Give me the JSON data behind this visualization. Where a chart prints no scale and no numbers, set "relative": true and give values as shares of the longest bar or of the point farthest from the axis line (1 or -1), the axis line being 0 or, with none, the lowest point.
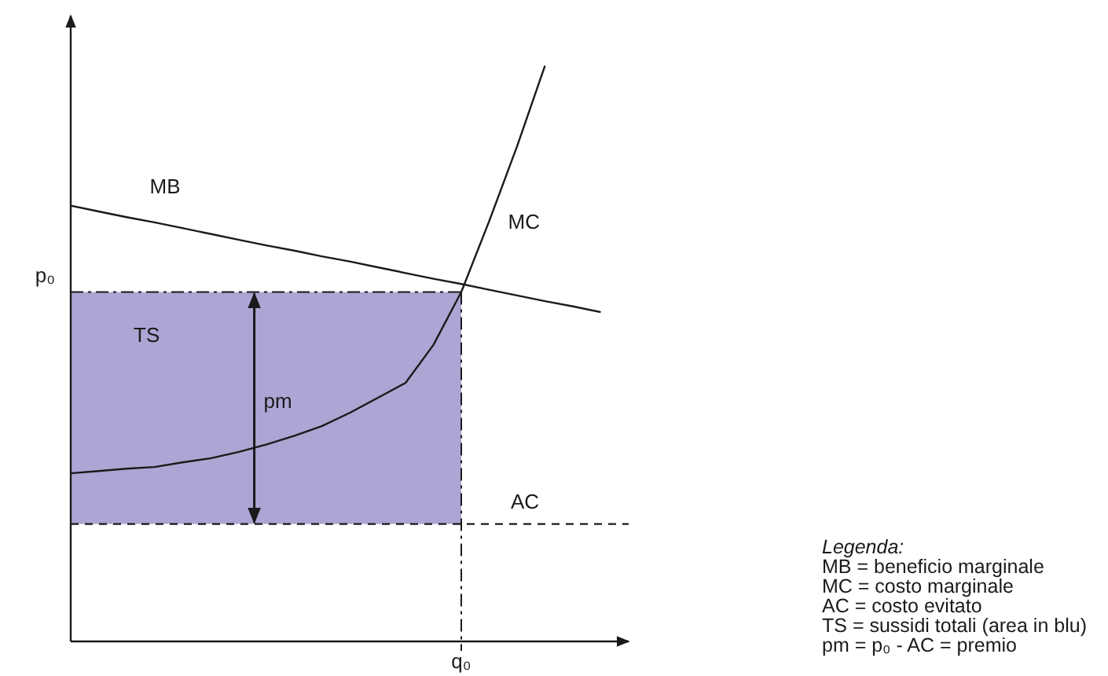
{
  "chart_data": {
    "type": "line",
    "relative": true,
    "categories": [
      null,
      null,
      null,
      null,
      null,
      null,
      null,
      null,
      null,
      null,
      null,
      null,
      null,
      null,
      null,
      null,
      null,
      null,
      null,
      null,
      null
    ],
    "series": [
      {
        "name": "MB",
        "color": "#1a1a1a",
        "values": [
          0.757,
          0.747,
          0.737,
          0.728,
          0.718,
          0.708,
          0.698,
          0.688,
          0.679,
          0.669,
          0.66,
          0.65,
          0.64,
          0.63,
          0.621,
          0.611,
          0.601,
          0.591,
          0.582,
          0.572,
          null
        ]
      },
      {
        "name": "MC",
        "color": "#1a1a1a",
        "values": [
          0.292,
          0.296,
          0.3,
          0.303,
          0.311,
          0.318,
          0.329,
          0.342,
          0.357,
          0.374,
          0.397,
          0.423,
          0.449,
          0.515,
          0.607,
          0.73,
          0.86,
          1,
          null,
          null,
          null
        ]
      },
      {
        "name": "AC",
        "color": "#1a1a1a",
        "line_style": "dashed",
        "values": [
          0.204,
          0.204,
          0.204,
          0.204,
          0.204,
          0.204,
          0.204,
          0.204,
          0.204,
          0.204,
          0.204,
          0.204,
          0.204,
          0.204,
          0.204,
          0.204,
          0.204,
          0.204,
          0.204,
          0.204,
          0.204
        ]
      }
    ],
    "ref_lines": [
      {
        "axis": "y",
        "value": 0.607,
        "label": "p₀",
        "line_style": "dashdot",
        "color": "#1a1a1a"
      }
    ],
    "bands": [
      {
        "axis": "y",
        "from": 0.204,
        "to": 0.607,
        "label": "TS",
        "color": "#aba6d3"
      }
    ],
    "annotations": [
      "pm",
      "q₀",
      "Legenda:",
      "MB = beneficio marginale",
      "MC = costo marginale",
      "AC = costo evitato",
      "TS = sussidi totali (area in blu)",
      "pm = p₀ - AC = premio"
    ]
  }
}
